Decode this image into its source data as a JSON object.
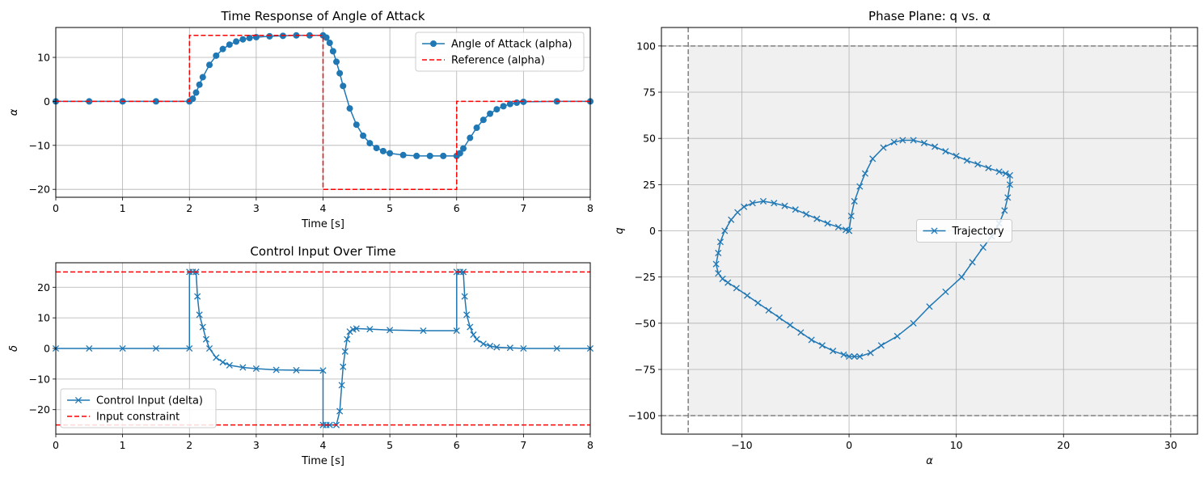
{
  "colors": {
    "series_blue": "#1f77b4",
    "reference_red": "#ff0000",
    "grid": "#b0b0b0",
    "constraint_gray": "#808080",
    "region_fill": "#f0f0f0"
  },
  "chart_data": [
    {
      "type": "line",
      "title": "Time Response of Angle of Attack",
      "xlabel": "Time [s]",
      "ylabel": "α",
      "xlim": [
        0,
        8
      ],
      "ylim": [
        -21.8,
        16.8
      ],
      "xticks": [
        0,
        1,
        2,
        3,
        4,
        5,
        6,
        7,
        8
      ],
      "yticks": [
        -20,
        -10,
        0,
        10
      ],
      "grid": true,
      "legend_position": "top-right",
      "series": [
        {
          "name": "Angle of Attack (alpha)",
          "marker": "o",
          "x": [
            0,
            0.5,
            1,
            1.5,
            2.0,
            2.05,
            2.1,
            2.15,
            2.2,
            2.3,
            2.4,
            2.5,
            2.6,
            2.7,
            2.8,
            2.9,
            3.0,
            3.2,
            3.4,
            3.6,
            3.8,
            4.0,
            4.05,
            4.1,
            4.15,
            4.2,
            4.25,
            4.3,
            4.4,
            4.5,
            4.6,
            4.7,
            4.8,
            4.9,
            5.0,
            5.2,
            5.4,
            5.6,
            5.8,
            6.0,
            6.05,
            6.1,
            6.2,
            6.3,
            6.4,
            6.5,
            6.6,
            6.7,
            6.8,
            6.9,
            7.0,
            7.5,
            8.0
          ],
          "y": [
            0,
            0,
            0,
            0,
            0,
            0.6,
            2.0,
            3.8,
            5.5,
            8.3,
            10.4,
            11.9,
            12.9,
            13.6,
            14.1,
            14.4,
            14.6,
            14.8,
            14.9,
            15.0,
            15.0,
            15.0,
            14.5,
            13.3,
            11.4,
            9.0,
            6.4,
            3.5,
            -1.6,
            -5.3,
            -7.8,
            -9.5,
            -10.6,
            -11.3,
            -11.8,
            -12.2,
            -12.4,
            -12.4,
            -12.4,
            -12.4,
            -11.8,
            -10.7,
            -8.3,
            -6.0,
            -4.2,
            -2.8,
            -1.8,
            -1.1,
            -0.6,
            -0.3,
            -0.1,
            0,
            0
          ]
        },
        {
          "name": "Reference (alpha)",
          "style": "dashed",
          "x": [
            0,
            2,
            2,
            4,
            4,
            6,
            6,
            8
          ],
          "y": [
            0,
            0,
            15,
            15,
            -20,
            -20,
            0,
            0
          ]
        }
      ]
    },
    {
      "type": "line",
      "title": "Control Input Over Time",
      "xlabel": "Time [s]",
      "ylabel": "δ",
      "xlim": [
        0,
        8
      ],
      "ylim": [
        -28,
        28
      ],
      "xticks": [
        0,
        1,
        2,
        3,
        4,
        5,
        6,
        7,
        8
      ],
      "yticks": [
        -20,
        -10,
        0,
        10,
        20
      ],
      "grid": true,
      "legend_position": "bottom-left",
      "series": [
        {
          "name": "Control Input (delta)",
          "marker": "x",
          "x": [
            0,
            0.5,
            1,
            1.5,
            2.0,
            2.0,
            2.05,
            2.1,
            2.12,
            2.15,
            2.2,
            2.25,
            2.3,
            2.4,
            2.5,
            2.6,
            2.8,
            3.0,
            3.3,
            3.6,
            4.0,
            4.0,
            4.05,
            4.1,
            4.2,
            4.25,
            4.28,
            4.3,
            4.33,
            4.36,
            4.4,
            4.45,
            4.5,
            4.7,
            5.0,
            5.5,
            6.0,
            6.0,
            6.05,
            6.1,
            6.12,
            6.15,
            6.2,
            6.25,
            6.3,
            6.4,
            6.5,
            6.6,
            6.8,
            7.0,
            7.5,
            8.0
          ],
          "y": [
            0,
            0,
            0,
            0,
            0,
            25,
            25,
            25,
            17,
            11,
            7,
            3,
            0,
            -3,
            -4.5,
            -5.5,
            -6.2,
            -6.6,
            -7.0,
            -7.1,
            -7.2,
            -25,
            -25,
            -25,
            -25,
            -20.5,
            -12,
            -6,
            -1,
            3,
            5.5,
            6.2,
            6.5,
            6.3,
            6.0,
            5.8,
            5.8,
            25,
            25,
            25,
            17,
            11,
            7,
            4.5,
            3,
            1.5,
            0.8,
            0.4,
            0.2,
            0,
            0,
            0
          ]
        },
        {
          "name": "Input constraint",
          "style": "dashed",
          "y_constant": [
            25,
            -25
          ]
        }
      ]
    },
    {
      "type": "line",
      "title": "Phase Plane: q vs. α",
      "xlabel": "α",
      "ylabel": "q",
      "xlim": [
        -17.5,
        32.5
      ],
      "ylim": [
        -110,
        110
      ],
      "xticks": [
        -10,
        0,
        10,
        20,
        30
      ],
      "yticks": [
        -100,
        -75,
        -50,
        -25,
        0,
        25,
        50,
        75,
        100
      ],
      "grid": true,
      "legend_position": "center",
      "constraint_box": {
        "alpha": [
          -15,
          30
        ],
        "q": [
          -100,
          100
        ]
      },
      "series": [
        {
          "name": "Trajectory",
          "marker": "x",
          "x": [
            0,
            0.2,
            0.5,
            1.0,
            1.5,
            2.2,
            3.2,
            4.2,
            5.0,
            6.0,
            7.0,
            8.0,
            9.0,
            10.0,
            11.0,
            12.0,
            13.0,
            14.0,
            14.6,
            15.0,
            15.0,
            14.8,
            14.5,
            14.0,
            13.3,
            12.5,
            11.5,
            10.5,
            9.0,
            7.5,
            6.0,
            4.5,
            3.0,
            2.0,
            1.0,
            0.5,
            0,
            -0.5,
            -1.5,
            -2.5,
            -3.5,
            -4.5,
            -5.5,
            -6.5,
            -7.5,
            -8.5,
            -9.5,
            -10.5,
            -11.3,
            -11.8,
            -12.2,
            -12.4,
            -12.2,
            -12.0,
            -11.6,
            -11.0,
            -10.4,
            -9.8,
            -9.0,
            -8.0,
            -7.0,
            -6.0,
            -5.0,
            -4.0,
            -3.0,
            -2.0,
            -1.0,
            -0.3,
            0
          ],
          "y": [
            0,
            8,
            16,
            24,
            31,
            39,
            45,
            48,
            49,
            49,
            47.5,
            45.5,
            43,
            40.5,
            38,
            36,
            34,
            32,
            31,
            30,
            25,
            18,
            11,
            4,
            -3,
            -9,
            -17,
            -25,
            -33,
            -41,
            -50,
            -57,
            -62,
            -66,
            -68,
            -68,
            -68,
            -67,
            -65,
            -62,
            -59,
            -55,
            -51,
            -47,
            -43,
            -39,
            -35,
            -31,
            -28,
            -26,
            -23,
            -18,
            -12,
            -6,
            0,
            6,
            10,
            13,
            15,
            16,
            15,
            13.5,
            11.5,
            9,
            6.5,
            4,
            2,
            0.5,
            0
          ]
        }
      ]
    }
  ]
}
